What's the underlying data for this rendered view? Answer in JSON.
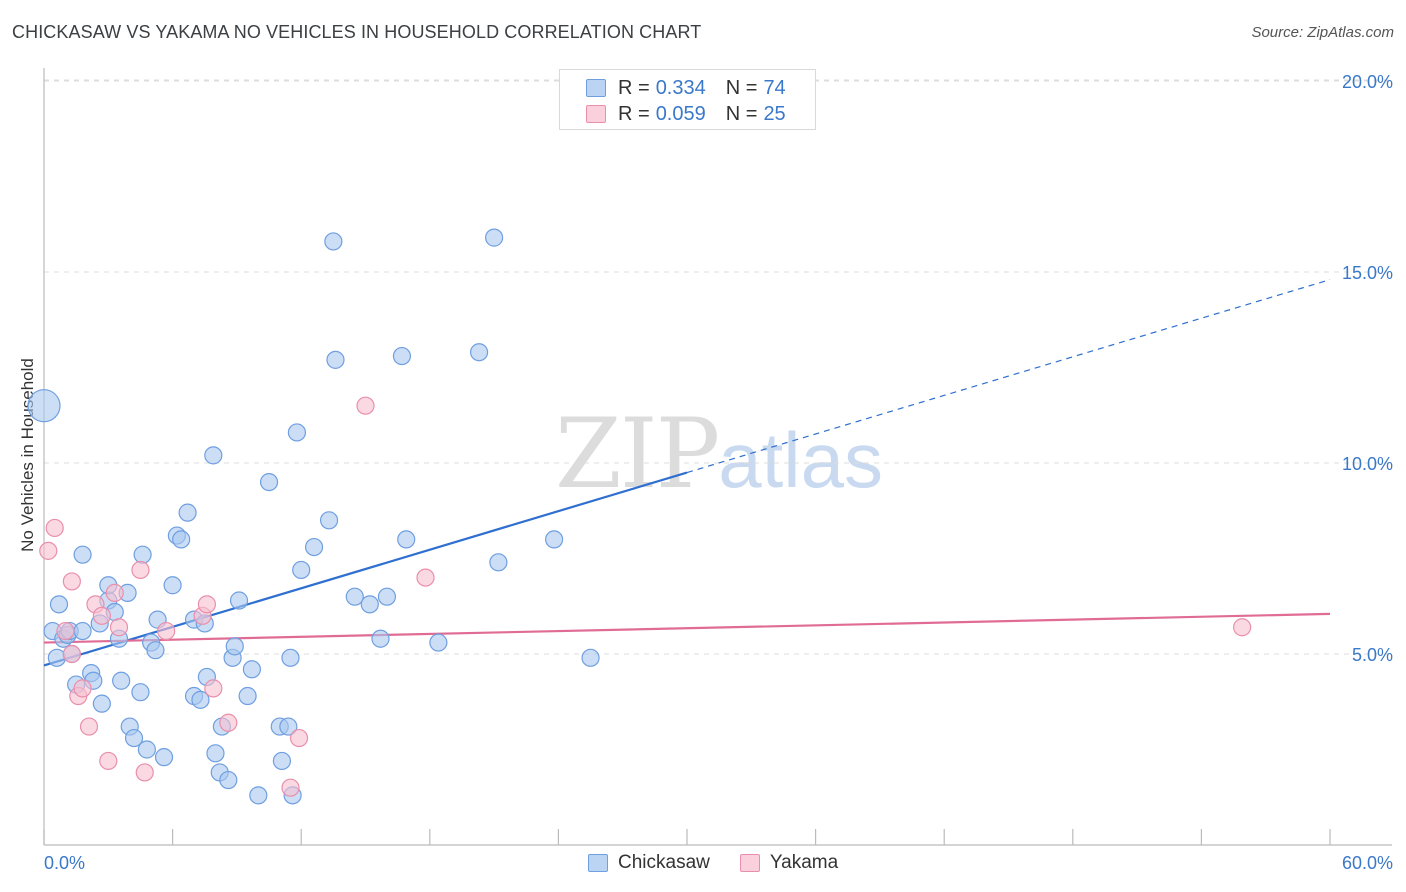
{
  "header": {
    "title": "CHICKASAW VS YAKAMA NO VEHICLES IN HOUSEHOLD CORRELATION CHART",
    "source": "Source: ZipAtlas.com"
  },
  "watermark": {
    "zip": "ZIP",
    "atlas": "atlas"
  },
  "legend": {
    "rows": [
      {
        "r_label": "R =",
        "r_value": "0.334",
        "n_label": "N =",
        "n_value": "74"
      },
      {
        "r_label": "R =",
        "r_value": "0.059",
        "n_label": "N =",
        "n_value": "25"
      }
    ],
    "series": [
      "Chickasaw",
      "Yakama"
    ]
  },
  "colors": {
    "chickasaw_fill": "#a9c8f0",
    "chickasaw_stroke": "#6f9fe0",
    "chickasaw_line": "#2f6fcf",
    "yakama_fill": "#f6bfd0",
    "yakama_stroke": "#ea8fab",
    "yakama_line": "#e06c95",
    "axis_label": "#3a78c9",
    "grid": "#dddddd"
  },
  "chart_data": {
    "type": "scatter",
    "title": "CHICKASAW VS YAKAMA NO VEHICLES IN HOUSEHOLD CORRELATION CHART",
    "xlabel": "",
    "ylabel": "No Vehicles in Household",
    "xlim": [
      0,
      60
    ],
    "ylim": [
      0,
      20.5
    ],
    "x_tick_labels": [
      "0.0%",
      "60.0%"
    ],
    "y_ticks": [
      5,
      10,
      15,
      20
    ],
    "y_tick_labels": [
      "5.0%",
      "10.0%",
      "15.0%",
      "20.0%"
    ],
    "series": [
      {
        "name": "Chickasaw",
        "r": 0.334,
        "n": 74,
        "trend": {
          "x0": 0,
          "y0": 4.7,
          "x1": 30,
          "y1": 9.75,
          "dashed_to_x": 60,
          "dashed_to_y": 14.8
        },
        "points": [
          [
            0,
            11.5,
            "big"
          ],
          [
            0.4,
            5.6
          ],
          [
            0.6,
            4.9
          ],
          [
            0.7,
            6.3
          ],
          [
            0.9,
            5.4
          ],
          [
            1.1,
            5.5
          ],
          [
            1.2,
            5.6
          ],
          [
            1.3,
            5.0
          ],
          [
            1.5,
            4.2
          ],
          [
            1.8,
            5.6
          ],
          [
            1.8,
            7.6
          ],
          [
            2.2,
            4.5
          ],
          [
            2.3,
            4.3
          ],
          [
            2.7,
            3.7
          ],
          [
            2.6,
            5.8
          ],
          [
            3.0,
            6.4
          ],
          [
            3.0,
            6.8
          ],
          [
            3.3,
            6.1
          ],
          [
            3.5,
            5.4
          ],
          [
            3.6,
            4.3
          ],
          [
            3.9,
            6.6
          ],
          [
            4.0,
            3.1
          ],
          [
            4.2,
            2.8
          ],
          [
            4.5,
            4.0
          ],
          [
            4.6,
            7.6
          ],
          [
            4.8,
            2.5
          ],
          [
            5.0,
            5.3
          ],
          [
            5.2,
            5.1
          ],
          [
            5.3,
            5.9
          ],
          [
            5.6,
            2.3
          ],
          [
            6.0,
            6.8
          ],
          [
            6.2,
            8.1
          ],
          [
            6.4,
            8.0
          ],
          [
            6.7,
            8.7
          ],
          [
            7.0,
            5.9
          ],
          [
            7.0,
            3.9
          ],
          [
            7.3,
            3.8
          ],
          [
            7.5,
            5.8
          ],
          [
            7.6,
            4.4
          ],
          [
            7.9,
            10.2
          ],
          [
            8.0,
            2.4
          ],
          [
            8.2,
            1.9
          ],
          [
            8.3,
            3.1
          ],
          [
            8.6,
            1.7
          ],
          [
            8.8,
            4.9
          ],
          [
            8.9,
            5.2
          ],
          [
            9.1,
            6.4
          ],
          [
            9.5,
            3.9
          ],
          [
            9.7,
            4.6
          ],
          [
            10.0,
            1.3
          ],
          [
            10.5,
            9.5
          ],
          [
            11.0,
            3.1
          ],
          [
            11.1,
            2.2
          ],
          [
            11.4,
            3.1
          ],
          [
            11.5,
            4.9
          ],
          [
            11.6,
            1.3
          ],
          [
            11.8,
            10.8
          ],
          [
            12.0,
            7.2
          ],
          [
            12.6,
            7.8
          ],
          [
            13.3,
            8.5
          ],
          [
            13.5,
            15.8
          ],
          [
            13.6,
            12.7
          ],
          [
            14.5,
            6.5
          ],
          [
            15.2,
            6.3
          ],
          [
            15.7,
            5.4
          ],
          [
            16.0,
            6.5
          ],
          [
            16.7,
            12.8
          ],
          [
            16.9,
            8.0
          ],
          [
            18.4,
            5.3
          ],
          [
            20.3,
            12.9
          ],
          [
            21.0,
            15.9
          ],
          [
            21.2,
            7.4
          ],
          [
            23.8,
            8.0
          ],
          [
            25.5,
            4.9
          ]
        ]
      },
      {
        "name": "Yakama",
        "r": 0.059,
        "n": 25,
        "trend": {
          "x0": 0,
          "y0": 5.3,
          "x1": 60,
          "y1": 6.05
        },
        "points": [
          [
            0.2,
            7.7
          ],
          [
            0.5,
            8.3
          ],
          [
            1.0,
            5.6
          ],
          [
            1.3,
            5.0
          ],
          [
            1.3,
            6.9
          ],
          [
            1.6,
            3.9
          ],
          [
            1.8,
            4.1
          ],
          [
            2.1,
            3.1
          ],
          [
            2.4,
            6.3
          ],
          [
            2.7,
            6.0
          ],
          [
            3.0,
            2.2
          ],
          [
            3.3,
            6.6
          ],
          [
            3.5,
            5.7
          ],
          [
            4.5,
            7.2
          ],
          [
            4.7,
            1.9
          ],
          [
            5.7,
            5.6
          ],
          [
            7.4,
            6.0
          ],
          [
            7.6,
            6.3
          ],
          [
            7.9,
            4.1
          ],
          [
            8.6,
            3.2
          ],
          [
            11.5,
            1.5
          ],
          [
            11.9,
            2.8
          ],
          [
            15.0,
            11.5
          ],
          [
            17.8,
            7.0
          ],
          [
            55.9,
            5.7
          ]
        ]
      }
    ]
  }
}
